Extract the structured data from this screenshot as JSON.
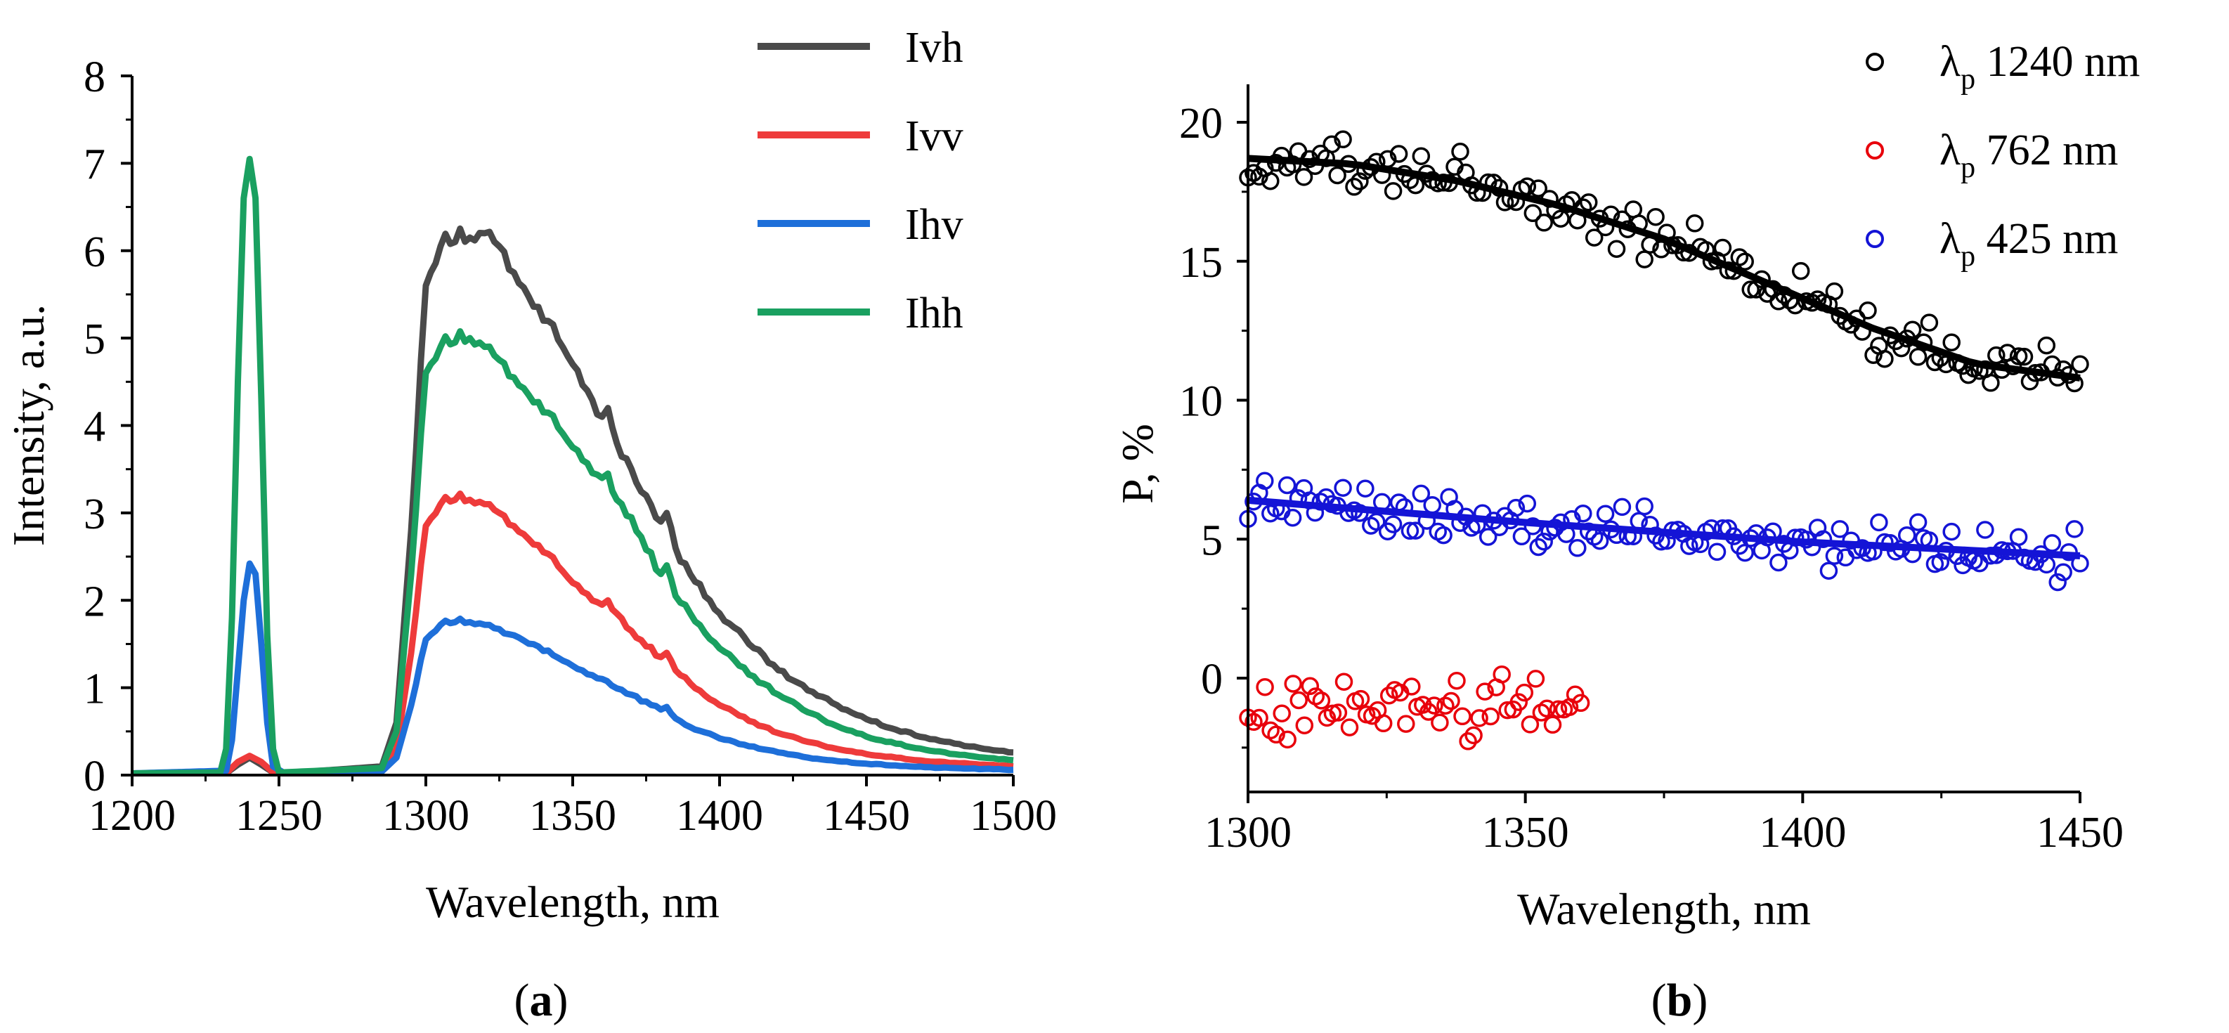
{
  "chart_data": [
    {
      "id": "a",
      "type": "line",
      "caption_open": "(",
      "caption_letter": "a",
      "caption_close": ")",
      "xlabel": "Wavelength, nm",
      "ylabel": "Intensity, a.u.",
      "xlim": [
        1200,
        1500
      ],
      "ylim": [
        0,
        8
      ],
      "xticks": [
        "1200",
        "1250",
        "1300",
        "1350",
        "1400",
        "1450",
        "1500"
      ],
      "yticks": [
        "0",
        "1",
        "2",
        "3",
        "4",
        "5",
        "6",
        "7",
        "8"
      ],
      "legend_position": "top-right",
      "series": [
        {
          "name": "Ivh",
          "color": "#4a4a4a",
          "x": [
            1200,
            1232,
            1236,
            1240,
            1244,
            1248,
            1252,
            1285,
            1290,
            1295,
            1300,
            1305,
            1310,
            1315,
            1320,
            1325,
            1330,
            1340,
            1350,
            1355,
            1360,
            1362,
            1365,
            1370,
            1375,
            1380,
            1382,
            1385,
            1390,
            1400,
            1410,
            1420,
            1430,
            1440,
            1450,
            1460,
            1470,
            1480,
            1490,
            1500
          ],
          "y": [
            0.02,
            0.02,
            0.12,
            0.2,
            0.12,
            0.03,
            0.02,
            0.1,
            0.6,
            2.8,
            5.6,
            6.05,
            6.1,
            6.15,
            6.2,
            6.05,
            5.75,
            5.2,
            4.7,
            4.4,
            4.1,
            4.2,
            3.8,
            3.5,
            3.2,
            2.9,
            3.0,
            2.6,
            2.3,
            1.85,
            1.5,
            1.2,
            0.97,
            0.8,
            0.64,
            0.52,
            0.43,
            0.36,
            0.3,
            0.26
          ]
        },
        {
          "name": "Ivv",
          "color": "#ee3b3b",
          "x": [
            1200,
            1232,
            1236,
            1240,
            1244,
            1248,
            1252,
            1285,
            1290,
            1295,
            1300,
            1305,
            1310,
            1315,
            1320,
            1325,
            1330,
            1340,
            1350,
            1360,
            1362,
            1365,
            1370,
            1380,
            1382,
            1385,
            1390,
            1400,
            1410,
            1420,
            1430,
            1440,
            1450,
            1460,
            1470,
            1480,
            1490,
            1500
          ],
          "y": [
            0.02,
            0.02,
            0.15,
            0.22,
            0.15,
            0.03,
            0.02,
            0.06,
            0.3,
            1.4,
            2.85,
            3.1,
            3.15,
            3.15,
            3.1,
            3.0,
            2.85,
            2.55,
            2.2,
            1.95,
            2.0,
            1.85,
            1.65,
            1.35,
            1.4,
            1.2,
            1.05,
            0.8,
            0.62,
            0.48,
            0.38,
            0.3,
            0.24,
            0.2,
            0.16,
            0.14,
            0.12,
            0.1
          ]
        },
        {
          "name": "Ihv",
          "color": "#1e6fd9",
          "x": [
            1200,
            1232,
            1234,
            1236,
            1238,
            1240,
            1242,
            1244,
            1246,
            1248,
            1252,
            1285,
            1290,
            1295,
            1300,
            1305,
            1310,
            1315,
            1320,
            1330,
            1340,
            1350,
            1360,
            1370,
            1380,
            1382,
            1385,
            1390,
            1400,
            1410,
            1420,
            1430,
            1440,
            1450,
            1460,
            1470,
            1480,
            1490,
            1500
          ],
          "y": [
            0.02,
            0.05,
            0.4,
            1.2,
            2.0,
            2.42,
            2.3,
            1.5,
            0.6,
            0.1,
            0.02,
            0.04,
            0.2,
            0.8,
            1.55,
            1.72,
            1.75,
            1.75,
            1.72,
            1.6,
            1.42,
            1.25,
            1.1,
            0.92,
            0.75,
            0.78,
            0.65,
            0.55,
            0.42,
            0.33,
            0.26,
            0.2,
            0.16,
            0.13,
            0.11,
            0.09,
            0.08,
            0.07,
            0.06
          ]
        },
        {
          "name": "Ihh",
          "color": "#1aa060",
          "x": [
            1200,
            1230,
            1232,
            1234,
            1236,
            1238,
            1240,
            1242,
            1244,
            1246,
            1248,
            1250,
            1285,
            1290,
            1295,
            1300,
            1305,
            1310,
            1315,
            1320,
            1325,
            1330,
            1340,
            1350,
            1360,
            1362,
            1365,
            1370,
            1380,
            1382,
            1385,
            1390,
            1400,
            1410,
            1420,
            1430,
            1440,
            1450,
            1460,
            1470,
            1480,
            1490,
            1500
          ],
          "y": [
            0.02,
            0.03,
            0.3,
            1.8,
            4.5,
            6.6,
            7.05,
            6.6,
            4.3,
            1.6,
            0.3,
            0.03,
            0.08,
            0.5,
            2.3,
            4.6,
            4.9,
            4.95,
            5.0,
            4.9,
            4.75,
            4.55,
            4.15,
            3.75,
            3.4,
            3.45,
            3.15,
            2.95,
            2.3,
            2.4,
            2.05,
            1.85,
            1.45,
            1.15,
            0.92,
            0.72,
            0.56,
            0.44,
            0.36,
            0.29,
            0.24,
            0.2,
            0.17
          ]
        }
      ]
    },
    {
      "id": "b",
      "type": "scatter",
      "caption_open": "(",
      "caption_letter": "b",
      "caption_close": ")",
      "xlabel": "Wavelength, nm",
      "ylabel": "P, %",
      "xlim": [
        1300,
        1450
      ],
      "ylim": [
        -3.5,
        21
      ],
      "xticks": [
        "1300",
        "1350",
        "1400",
        "1450"
      ],
      "yticks": [
        "0",
        "5",
        "10",
        "15",
        "20"
      ],
      "legend_position": "top-right",
      "series": [
        {
          "name": "1240 nm",
          "symbol": "λ",
          "subscript": "p",
          "color": "#000000",
          "fit": {
            "x": [
              1300,
              1320,
              1340,
              1360,
              1380,
              1400,
              1420,
              1440,
              1450
            ],
            "y": [
              18.7,
              18.5,
              17.9,
              17.0,
              15.8,
              14.2,
              12.6,
              11.3,
              10.8
            ]
          },
          "trend": [
            18.7,
            18.5,
            17.9,
            17.0,
            15.8,
            14.2,
            12.6,
            11.3,
            10.8
          ],
          "spread": 1.2,
          "x_from": 1300,
          "x_to": 1450,
          "count": 150
        },
        {
          "name": "762 nm",
          "symbol": "λ",
          "subscript": "p",
          "color": "#e8000b",
          "fit": null,
          "trend": [
            -1.3,
            -1.1,
            -1.0,
            -1.1,
            -1.2,
            -1.0,
            -0.9
          ],
          "spread": 1.3,
          "x_from": 1300,
          "x_to": 1360,
          "count": 60
        },
        {
          "name": "425 nm",
          "symbol": "λ",
          "subscript": "p",
          "color": "#1414d6",
          "fit": {
            "x": [
              1300,
              1350,
              1400,
              1450
            ],
            "y": [
              6.4,
              5.6,
              4.9,
              4.4
            ]
          },
          "trend": [
            6.4,
            5.6,
            4.9,
            4.4
          ],
          "spread": 1.1,
          "x_from": 1300,
          "x_to": 1450,
          "count": 150
        }
      ]
    }
  ]
}
